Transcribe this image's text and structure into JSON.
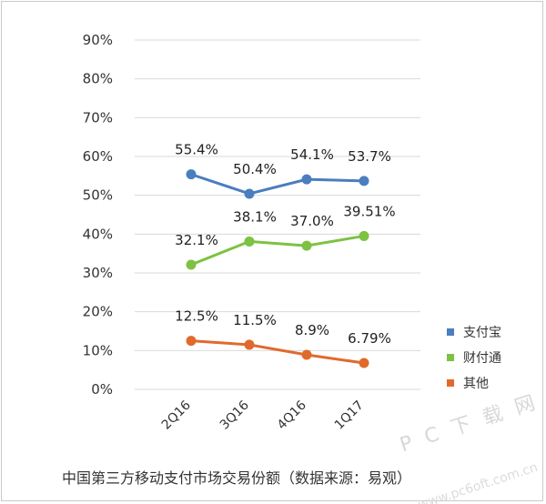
{
  "chart_data": {
    "type": "line",
    "categories": [
      "2Q16",
      "3Q16",
      "4Q16",
      "1Q17"
    ],
    "y_ticks": [
      "0%",
      "10%",
      "20%",
      "30%",
      "40%",
      "50%",
      "60%",
      "70%",
      "80%",
      "90%"
    ],
    "ylim": [
      0,
      90
    ],
    "grid": true,
    "legend_position": "right",
    "series": [
      {
        "name": "支付宝",
        "color": "#4a7ebf",
        "values": [
          55.4,
          50.4,
          54.1,
          53.7
        ],
        "labels": [
          "55.4%",
          "50.4%",
          "54.1%",
          "53.7%"
        ]
      },
      {
        "name": "财付通",
        "color": "#7dc242",
        "values": [
          32.1,
          38.1,
          37.0,
          39.51
        ],
        "labels": [
          "32.1%",
          "38.1%",
          "37.0%",
          "39.51%"
        ]
      },
      {
        "name": "其他",
        "color": "#e06a2c",
        "values": [
          12.5,
          11.5,
          8.9,
          6.79
        ],
        "labels": [
          "12.5%",
          "11.5%",
          "8.9%",
          "6.79%"
        ]
      }
    ],
    "caption": "中国第三方移动支付市场交易份额（数据来源：易观）"
  },
  "watermark": {
    "text": "P C 下 载 网",
    "url": "www.pc6oft.com.cn"
  }
}
